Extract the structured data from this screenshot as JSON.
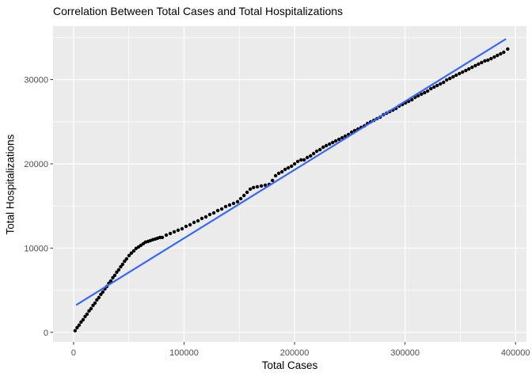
{
  "chart_data": {
    "type": "scatter",
    "title": "Correlation Between Total Cases and Total Hospitalizations",
    "xlabel": "Total Cases",
    "ylabel": "Total Hospitalizations",
    "legend": false,
    "grid": true,
    "panel_bg": "#EBEBEB",
    "grid_color": "#FFFFFF",
    "tick_label_color": "#4D4D4D",
    "tick_mark_color": "#333333",
    "point_color": "#000000",
    "xlim": [
      -18600,
      409900
    ],
    "ylim": [
      -1150,
      36350
    ],
    "x_ticks": [
      0,
      100000,
      200000,
      300000,
      400000
    ],
    "x_tick_labels": [
      "0",
      "100000",
      "200000",
      "300000",
      "400000"
    ],
    "x_minor_ticks": [
      50000,
      150000,
      250000,
      350000
    ],
    "y_ticks": [
      0,
      10000,
      20000,
      30000
    ],
    "y_tick_labels": [
      "0",
      "10000",
      "20000",
      "30000"
    ],
    "y_minor_ticks": [
      5000,
      15000,
      25000,
      35000
    ],
    "regression_line": {
      "color": "#3366FF",
      "x1": 2900,
      "y1": 3290,
      "x2": 390800,
      "y2": 34780
    },
    "points": [
      [
        1400,
        190
      ],
      [
        3200,
        560
      ],
      [
        5000,
        850
      ],
      [
        6800,
        1220
      ],
      [
        8600,
        1500
      ],
      [
        10400,
        1880
      ],
      [
        12200,
        2160
      ],
      [
        14000,
        2540
      ],
      [
        15800,
        2820
      ],
      [
        17600,
        3190
      ],
      [
        19400,
        3470
      ],
      [
        21100,
        3850
      ],
      [
        22900,
        4130
      ],
      [
        24700,
        4510
      ],
      [
        26500,
        4790
      ],
      [
        28300,
        5160
      ],
      [
        30100,
        5450
      ],
      [
        31900,
        5820
      ],
      [
        33700,
        6100
      ],
      [
        35500,
        6480
      ],
      [
        37300,
        6760
      ],
      [
        39100,
        7140
      ],
      [
        40900,
        7420
      ],
      [
        42700,
        7790
      ],
      [
        44400,
        8080
      ],
      [
        46200,
        8450
      ],
      [
        48000,
        8730
      ],
      [
        50200,
        9110
      ],
      [
        52300,
        9400
      ],
      [
        54500,
        9670
      ],
      [
        56600,
        9960
      ],
      [
        58800,
        10140
      ],
      [
        60900,
        10330
      ],
      [
        63100,
        10520
      ],
      [
        65200,
        10710
      ],
      [
        67400,
        10800
      ],
      [
        69500,
        10890
      ],
      [
        71700,
        10990
      ],
      [
        73900,
        11080
      ],
      [
        76000,
        11170
      ],
      [
        78100,
        11270
      ],
      [
        80300,
        11270
      ],
      [
        83900,
        11550
      ],
      [
        87500,
        11740
      ],
      [
        91100,
        11930
      ],
      [
        94600,
        12120
      ],
      [
        98200,
        12300
      ],
      [
        101800,
        12580
      ],
      [
        105400,
        12770
      ],
      [
        109000,
        13050
      ],
      [
        112600,
        13240
      ],
      [
        116100,
        13520
      ],
      [
        119700,
        13710
      ],
      [
        123300,
        13990
      ],
      [
        126900,
        14180
      ],
      [
        130500,
        14460
      ],
      [
        134100,
        14650
      ],
      [
        137600,
        14930
      ],
      [
        141200,
        15120
      ],
      [
        144800,
        15310
      ],
      [
        148400,
        15500
      ],
      [
        151300,
        15870
      ],
      [
        154200,
        16250
      ],
      [
        157000,
        16620
      ],
      [
        159900,
        17000
      ],
      [
        162800,
        17190
      ],
      [
        166300,
        17280
      ],
      [
        169900,
        17370
      ],
      [
        173500,
        17470
      ],
      [
        177100,
        17560
      ],
      [
        180000,
        18030
      ],
      [
        182800,
        18590
      ],
      [
        185700,
        18880
      ],
      [
        188600,
        19060
      ],
      [
        191400,
        19340
      ],
      [
        194300,
        19530
      ],
      [
        197200,
        19720
      ],
      [
        200000,
        20000
      ],
      [
        202900,
        20280
      ],
      [
        205800,
        20470
      ],
      [
        208600,
        20470
      ],
      [
        211500,
        20750
      ],
      [
        214400,
        20940
      ],
      [
        217200,
        21220
      ],
      [
        220100,
        21500
      ],
      [
        223000,
        21690
      ],
      [
        225900,
        21970
      ],
      [
        228700,
        22160
      ],
      [
        231600,
        22350
      ],
      [
        234500,
        22530
      ],
      [
        237300,
        22720
      ],
      [
        240200,
        22910
      ],
      [
        243100,
        23100
      ],
      [
        245900,
        23290
      ],
      [
        248800,
        23480
      ],
      [
        251700,
        23760
      ],
      [
        254500,
        23950
      ],
      [
        257400,
        24130
      ],
      [
        260300,
        24320
      ],
      [
        263200,
        24510
      ],
      [
        266000,
        24790
      ],
      [
        268900,
        24980
      ],
      [
        271800,
        25170
      ],
      [
        274600,
        25360
      ],
      [
        277500,
        25540
      ],
      [
        280400,
        25830
      ],
      [
        283200,
        26010
      ],
      [
        286100,
        26200
      ],
      [
        289000,
        26390
      ],
      [
        291800,
        26580
      ],
      [
        294700,
        26860
      ],
      [
        297600,
        27050
      ],
      [
        300400,
        27230
      ],
      [
        303300,
        27420
      ],
      [
        306200,
        27610
      ],
      [
        309100,
        27890
      ],
      [
        311900,
        28080
      ],
      [
        314800,
        28270
      ],
      [
        317700,
        28450
      ],
      [
        320500,
        28640
      ],
      [
        323400,
        28920
      ],
      [
        326300,
        29110
      ],
      [
        329100,
        29300
      ],
      [
        332000,
        29490
      ],
      [
        334900,
        29680
      ],
      [
        337700,
        29960
      ],
      [
        340600,
        30140
      ],
      [
        343500,
        30330
      ],
      [
        346300,
        30520
      ],
      [
        349200,
        30710
      ],
      [
        352100,
        30900
      ],
      [
        355000,
        31080
      ],
      [
        357800,
        31270
      ],
      [
        360700,
        31460
      ],
      [
        363600,
        31650
      ],
      [
        366400,
        31840
      ],
      [
        369300,
        32020
      ],
      [
        372200,
        32210
      ],
      [
        375000,
        32310
      ],
      [
        377900,
        32490
      ],
      [
        380800,
        32680
      ],
      [
        383600,
        32870
      ],
      [
        386500,
        33060
      ],
      [
        389300,
        33250
      ],
      [
        392900,
        33620
      ]
    ]
  }
}
